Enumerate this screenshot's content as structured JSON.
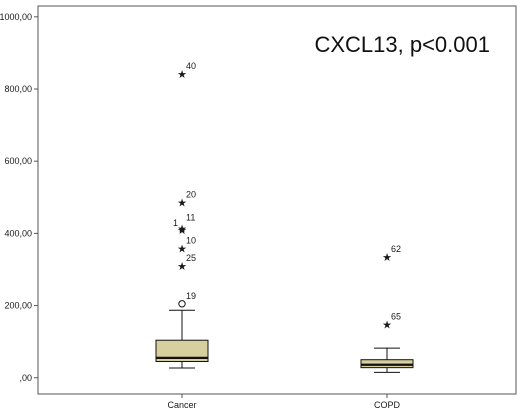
{
  "chart_data": {
    "type": "boxplot",
    "title": "CXCL13, p<0.001",
    "xlabel": "",
    "ylabel": "",
    "ylim": [
      -45,
      1030
    ],
    "yticks": [
      {
        "value": 0,
        "label": ",00"
      },
      {
        "value": 200,
        "label": "200,00"
      },
      {
        "value": 400,
        "label": "400,00"
      },
      {
        "value": 600,
        "label": "600,00"
      },
      {
        "value": 800,
        "label": "800,00"
      },
      {
        "value": 1000,
        "label": "1000,00"
      }
    ],
    "categories": [
      "Cancer",
      "COPD"
    ],
    "boxes": [
      {
        "category": "Cancer",
        "whisker_low": 27,
        "q1": 45,
        "median": 55,
        "q3": 104,
        "whisker_high": 187,
        "outliers": [
          {
            "value": 205,
            "label": "19",
            "marker": "circle"
          },
          {
            "value": 310,
            "label": "25",
            "marker": "star"
          },
          {
            "value": 358,
            "label": "10",
            "marker": "star"
          },
          {
            "value": 410,
            "label": "1",
            "marker": "star"
          },
          {
            "value": 414,
            "label": "11",
            "marker": "star"
          },
          {
            "value": 485,
            "label": "20",
            "marker": "star"
          },
          {
            "value": 842,
            "label": "40",
            "marker": "star"
          }
        ]
      },
      {
        "category": "COPD",
        "whisker_low": 15,
        "q1": 28,
        "median": 36,
        "q3": 50,
        "whisker_high": 82,
        "outliers": [
          {
            "value": 148,
            "label": "65",
            "marker": "star"
          },
          {
            "value": 334,
            "label": "62",
            "marker": "star"
          }
        ]
      }
    ],
    "colors": {
      "box_fill": "#d7cf9e",
      "frame": "#555555",
      "line": "#111111"
    },
    "grid": false
  }
}
